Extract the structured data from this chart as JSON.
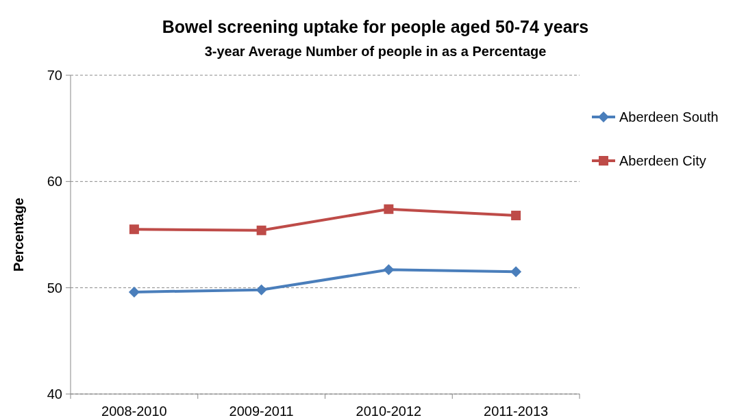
{
  "chart_data": {
    "type": "line",
    "title": "Bowel screening uptake for people aged 50-74 years",
    "subtitle": "3-year Average Number of people in as a Percentage",
    "ylabel": "Percentage",
    "categories": [
      "2008-2010",
      "2009-2011",
      "2010-2012",
      "2011-2013"
    ],
    "series": [
      {
        "name": "Aberdeen South",
        "color": "#4a7ebb",
        "values": [
          49.6,
          49.8,
          51.7,
          51.5
        ],
        "marker": "diamond"
      },
      {
        "name": "Aberdeen City",
        "color": "#be4b48",
        "values": [
          55.5,
          55.4,
          57.4,
          56.8
        ],
        "marker": "square"
      }
    ],
    "ylim": [
      40,
      70
    ],
    "yticks": [
      40,
      50,
      60,
      70
    ],
    "grid": "y",
    "legend": "right",
    "line_style": "solid"
  }
}
